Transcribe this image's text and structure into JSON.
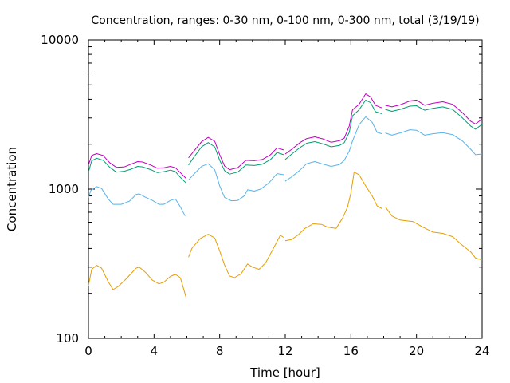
{
  "chart_data": {
    "type": "line",
    "title": "Concentration, ranges: 0-30 nm, 0-100 nm, 0-300 nm, total (3/19/19)",
    "xlabel": "Time [hour]",
    "ylabel": "Concentration",
    "xlim": [
      0,
      24
    ],
    "ylim": [
      100,
      10000
    ],
    "y_scale": "log",
    "grid": false,
    "x_ticks": [
      0,
      4,
      8,
      12,
      16,
      20,
      24
    ],
    "x_tick_labels": [
      "0",
      "4",
      "8",
      "12",
      "16",
      "20",
      "24"
    ],
    "y_ticks": [
      100,
      1000,
      10000
    ],
    "y_tick_labels": [
      "100",
      "1000",
      "10000"
    ],
    "series": [
      {
        "color": "#e69f00",
        "segments": [
          [
            [
              0,
              225
            ],
            [
              0.2,
              290
            ],
            [
              0.5,
              308
            ],
            [
              0.8,
              295
            ],
            [
              1.2,
              240
            ],
            [
              1.5,
              212
            ],
            [
              1.8,
              222
            ],
            [
              2.3,
              250
            ],
            [
              2.9,
              295
            ],
            [
              3.1,
              300
            ],
            [
              3.5,
              275
            ],
            [
              3.9,
              245
            ],
            [
              4.3,
              232
            ],
            [
              4.6,
              238
            ],
            [
              5.0,
              260
            ],
            [
              5.3,
              268
            ],
            [
              5.6,
              255
            ],
            [
              5.8,
              215
            ],
            [
              5.95,
              188
            ]
          ],
          [
            [
              6.1,
              350
            ],
            [
              6.3,
              400
            ],
            [
              6.8,
              465
            ],
            [
              7.3,
              498
            ],
            [
              7.7,
              470
            ],
            [
              8.0,
              385
            ],
            [
              8.3,
              310
            ],
            [
              8.6,
              262
            ],
            [
              8.9,
              255
            ],
            [
              9.3,
              270
            ],
            [
              9.7,
              315
            ],
            [
              10.0,
              300
            ],
            [
              10.4,
              290
            ],
            [
              10.8,
              320
            ],
            [
              11.3,
              405
            ],
            [
              11.7,
              490
            ],
            [
              11.9,
              475
            ]
          ],
          [
            [
              12.0,
              450
            ],
            [
              12.4,
              460
            ],
            [
              12.8,
              495
            ],
            [
              13.2,
              545
            ],
            [
              13.7,
              585
            ],
            [
              14.2,
              580
            ],
            [
              14.6,
              555
            ],
            [
              15.1,
              545
            ],
            [
              15.5,
              640
            ],
            [
              15.8,
              760
            ],
            [
              16.0,
              940
            ],
            [
              16.2,
              1300
            ],
            [
              16.5,
              1250
            ],
            [
              16.9,
              1050
            ],
            [
              17.3,
              900
            ],
            [
              17.6,
              770
            ],
            [
              17.9,
              740
            ]
          ],
          [
            [
              18.1,
              760
            ],
            [
              18.5,
              660
            ],
            [
              19.0,
              620
            ],
            [
              19.8,
              605
            ],
            [
              20.4,
              555
            ],
            [
              21.0,
              515
            ],
            [
              21.6,
              505
            ],
            [
              22.2,
              480
            ],
            [
              22.8,
              420
            ],
            [
              23.3,
              380
            ],
            [
              23.6,
              345
            ],
            [
              24.0,
              335
            ]
          ]
        ]
      },
      {
        "color": "#56b4e9",
        "segments": [
          [
            [
              0,
              880
            ],
            [
              0.15,
              980
            ],
            [
              0.5,
              1040
            ],
            [
              0.8,
              1010
            ],
            [
              1.2,
              860
            ],
            [
              1.5,
              790
            ],
            [
              2.0,
              790
            ],
            [
              2.5,
              830
            ],
            [
              2.9,
              920
            ],
            [
              3.1,
              930
            ],
            [
              3.5,
              880
            ],
            [
              3.9,
              840
            ],
            [
              4.3,
              790
            ],
            [
              4.6,
              790
            ],
            [
              5.0,
              840
            ],
            [
              5.3,
              860
            ],
            [
              5.6,
              760
            ],
            [
              5.9,
              660
            ]
          ],
          [
            [
              6.1,
              1150
            ],
            [
              6.4,
              1250
            ],
            [
              6.9,
              1420
            ],
            [
              7.3,
              1480
            ],
            [
              7.7,
              1350
            ],
            [
              8.0,
              1050
            ],
            [
              8.3,
              880
            ],
            [
              8.7,
              835
            ],
            [
              9.1,
              840
            ],
            [
              9.5,
              900
            ],
            [
              9.7,
              990
            ],
            [
              10.1,
              970
            ],
            [
              10.5,
              1000
            ],
            [
              11.0,
              1100
            ],
            [
              11.5,
              1270
            ],
            [
              11.9,
              1250
            ]
          ],
          [
            [
              12.0,
              1130
            ],
            [
              12.4,
              1210
            ],
            [
              12.9,
              1340
            ],
            [
              13.3,
              1480
            ],
            [
              13.8,
              1530
            ],
            [
              14.3,
              1470
            ],
            [
              14.8,
              1420
            ],
            [
              15.3,
              1460
            ],
            [
              15.6,
              1560
            ],
            [
              15.9,
              1800
            ],
            [
              16.1,
              2100
            ],
            [
              16.5,
              2700
            ],
            [
              16.9,
              3050
            ],
            [
              17.3,
              2800
            ],
            [
              17.6,
              2400
            ],
            [
              17.9,
              2350
            ]
          ],
          [
            [
              18.1,
              2380
            ],
            [
              18.5,
              2300
            ],
            [
              19.0,
              2380
            ],
            [
              19.6,
              2500
            ],
            [
              20.0,
              2480
            ],
            [
              20.5,
              2300
            ],
            [
              21.0,
              2350
            ],
            [
              21.6,
              2390
            ],
            [
              22.2,
              2320
            ],
            [
              22.8,
              2100
            ],
            [
              23.3,
              1850
            ],
            [
              23.6,
              1700
            ],
            [
              24.0,
              1720
            ]
          ]
        ]
      },
      {
        "color": "#009e73",
        "segments": [
          [
            [
              0,
              1300
            ],
            [
              0.2,
              1550
            ],
            [
              0.5,
              1610
            ],
            [
              0.9,
              1560
            ],
            [
              1.3,
              1400
            ],
            [
              1.7,
              1300
            ],
            [
              2.2,
              1320
            ],
            [
              2.6,
              1360
            ],
            [
              3.0,
              1420
            ],
            [
              3.3,
              1410
            ],
            [
              3.8,
              1350
            ],
            [
              4.2,
              1290
            ],
            [
              4.6,
              1310
            ],
            [
              5.0,
              1340
            ],
            [
              5.3,
              1310
            ],
            [
              5.6,
              1200
            ],
            [
              5.95,
              1100
            ]
          ],
          [
            [
              6.1,
              1450
            ],
            [
              6.4,
              1620
            ],
            [
              6.9,
              1920
            ],
            [
              7.3,
              2050
            ],
            [
              7.7,
              1920
            ],
            [
              8.0,
              1560
            ],
            [
              8.3,
              1330
            ],
            [
              8.6,
              1260
            ],
            [
              9.1,
              1300
            ],
            [
              9.6,
              1450
            ],
            [
              10.1,
              1440
            ],
            [
              10.6,
              1470
            ],
            [
              11.1,
              1580
            ],
            [
              11.5,
              1760
            ],
            [
              11.9,
              1700
            ]
          ],
          [
            [
              12.0,
              1580
            ],
            [
              12.4,
              1720
            ],
            [
              12.9,
              1900
            ],
            [
              13.3,
              2030
            ],
            [
              13.8,
              2080
            ],
            [
              14.3,
              2010
            ],
            [
              14.8,
              1920
            ],
            [
              15.3,
              1960
            ],
            [
              15.6,
              2050
            ],
            [
              15.9,
              2400
            ],
            [
              16.1,
              3100
            ],
            [
              16.5,
              3400
            ],
            [
              16.9,
              3950
            ],
            [
              17.2,
              3800
            ],
            [
              17.5,
              3300
            ],
            [
              17.9,
              3200
            ]
          ],
          [
            [
              18.1,
              3420
            ],
            [
              18.5,
              3320
            ],
            [
              19.0,
              3420
            ],
            [
              19.6,
              3600
            ],
            [
              20.0,
              3620
            ],
            [
              20.5,
              3380
            ],
            [
              21.0,
              3480
            ],
            [
              21.6,
              3560
            ],
            [
              22.2,
              3420
            ],
            [
              22.8,
              3000
            ],
            [
              23.3,
              2650
            ],
            [
              23.6,
              2520
            ],
            [
              24.0,
              2720
            ]
          ]
        ]
      },
      {
        "color": "#c000c0",
        "segments": [
          [
            [
              0,
              1450
            ],
            [
              0.2,
              1680
            ],
            [
              0.5,
              1730
            ],
            [
              0.9,
              1680
            ],
            [
              1.3,
              1500
            ],
            [
              1.7,
              1400
            ],
            [
              2.2,
              1410
            ],
            [
              2.6,
              1470
            ],
            [
              3.0,
              1530
            ],
            [
              3.3,
              1520
            ],
            [
              3.8,
              1450
            ],
            [
              4.2,
              1380
            ],
            [
              4.6,
              1390
            ],
            [
              5.0,
              1420
            ],
            [
              5.3,
              1390
            ],
            [
              5.6,
              1290
            ],
            [
              5.95,
              1180
            ]
          ],
          [
            [
              6.1,
              1620
            ],
            [
              6.4,
              1780
            ],
            [
              6.9,
              2080
            ],
            [
              7.3,
              2220
            ],
            [
              7.7,
              2090
            ],
            [
              8.0,
              1700
            ],
            [
              8.3,
              1430
            ],
            [
              8.6,
              1350
            ],
            [
              9.1,
              1390
            ],
            [
              9.6,
              1560
            ],
            [
              10.1,
              1550
            ],
            [
              10.6,
              1580
            ],
            [
              11.1,
              1700
            ],
            [
              11.5,
              1890
            ],
            [
              11.9,
              1830
            ]
          ],
          [
            [
              12.0,
              1720
            ],
            [
              12.4,
              1850
            ],
            [
              12.9,
              2050
            ],
            [
              13.3,
              2180
            ],
            [
              13.8,
              2240
            ],
            [
              14.3,
              2170
            ],
            [
              14.8,
              2060
            ],
            [
              15.3,
              2110
            ],
            [
              15.6,
              2200
            ],
            [
              15.9,
              2650
            ],
            [
              16.1,
              3400
            ],
            [
              16.5,
              3700
            ],
            [
              16.9,
              4350
            ],
            [
              17.2,
              4150
            ],
            [
              17.5,
              3650
            ],
            [
              17.9,
              3500
            ]
          ],
          [
            [
              18.1,
              3650
            ],
            [
              18.5,
              3560
            ],
            [
              19.0,
              3670
            ],
            [
              19.6,
              3900
            ],
            [
              20.0,
              3950
            ],
            [
              20.5,
              3650
            ],
            [
              21.0,
              3760
            ],
            [
              21.6,
              3850
            ],
            [
              22.2,
              3700
            ],
            [
              22.8,
              3250
            ],
            [
              23.3,
              2850
            ],
            [
              23.6,
              2730
            ],
            [
              24.0,
              2950
            ]
          ]
        ]
      }
    ]
  }
}
